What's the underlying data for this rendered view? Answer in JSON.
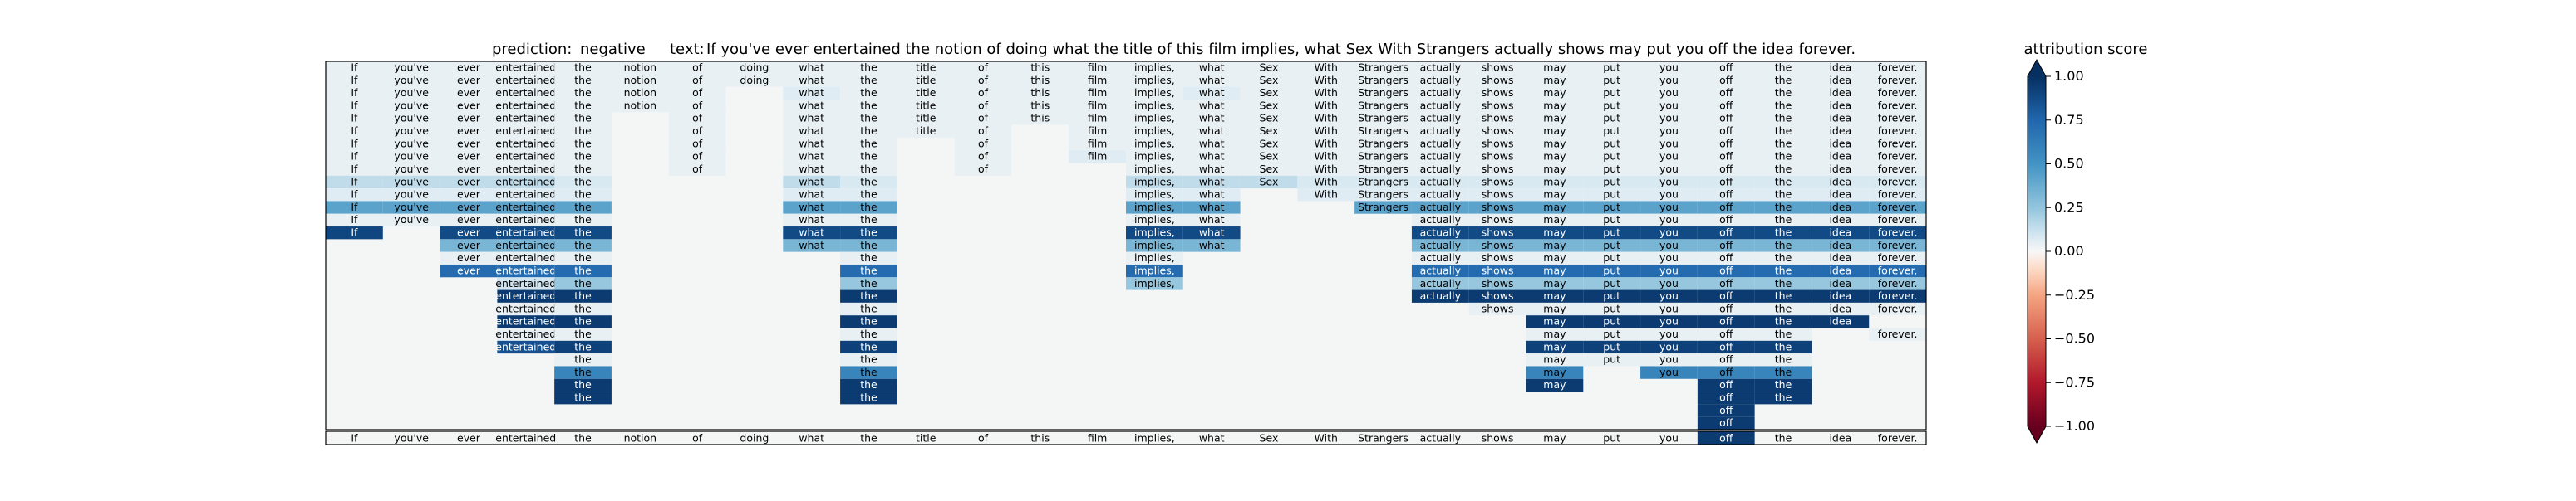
{
  "header": {
    "prediction_label": "prediction:",
    "prediction_value": "negative",
    "text_label": "text:",
    "text_value": "If you've ever entertained the notion of doing what the title of this film implies, what Sex With Strangers actually shows may put you off the idea forever."
  },
  "chart_data": {
    "type": "heatmap",
    "tokens": [
      "If",
      "you've",
      "ever",
      "entertained",
      "the",
      "notion",
      "of",
      "doing",
      "what",
      "the",
      "title",
      "of",
      "this",
      "film",
      "implies,",
      "what",
      "Sex",
      "With",
      "Strangers",
      "actually",
      "shows",
      "may",
      "put",
      "you",
      "off",
      "the",
      "idea",
      "forever."
    ],
    "row_spans": [
      [
        0,
        27
      ],
      [
        0,
        27
      ],
      [
        0,
        27
      ],
      [
        0,
        27
      ],
      [
        0,
        27
      ],
      [
        0,
        27
      ],
      [
        0,
        27
      ],
      [
        0,
        27
      ],
      [
        0,
        27
      ],
      [
        0,
        27
      ],
      [
        0,
        27
      ],
      [
        0,
        27
      ],
      [
        0,
        27
      ],
      [
        0,
        27
      ],
      [
        2,
        27
      ],
      [
        2,
        27
      ],
      [
        2,
        27
      ],
      [
        2,
        27
      ],
      [
        3,
        27
      ],
      [
        3,
        27
      ],
      [
        3,
        26
      ],
      [
        3,
        27
      ],
      [
        3,
        27
      ],
      [
        3,
        27
      ],
      [
        3,
        27
      ],
      [
        3,
        27
      ],
      [
        3,
        27
      ],
      [
        3,
        27
      ],
      [
        3,
        27
      ]
    ],
    "rows": [
      {
        "If": 0.04,
        "you've": 0.04,
        "ever": 0.04,
        "entertained": 0.04,
        "the": 0.04,
        "notion": 0.04,
        "of": 0.04,
        "doing": 0.04,
        "what": 0.04,
        "title": 0.04,
        "this": 0.04,
        "film": 0.04,
        "implies,": 0.04,
        "Sex": 0.04,
        "With": 0.04,
        "Strangers": 0.04,
        "actually": 0.04,
        "shows": 0.04,
        "may": 0.04,
        "put": 0.04,
        "you": 0.04,
        "off": 0.04,
        "idea": 0.04,
        "forever.": 0.04
      },
      {
        "If": 0.04,
        "you've": 0.04,
        "ever": 0.04,
        "entertained": 0.04,
        "the": 0.04,
        "notion": 0.04,
        "of": 0.04,
        "doing": 0.04,
        "what": 0.04,
        "title": 0.04,
        "this": 0.04,
        "film": 0.04,
        "implies,": 0.04,
        "Sex": 0.04,
        "With": 0.04,
        "Strangers": 0.04,
        "actually": 0.04,
        "shows": 0.04,
        "may": 0.04,
        "put": 0.04,
        "you": 0.04,
        "off": 0.04,
        "idea": 0.04,
        "forever.": 0.04
      },
      {
        "If": 0.04,
        "you've": 0.04,
        "ever": 0.04,
        "entertained": 0.04,
        "the": 0.04,
        "notion": 0.04,
        "of": 0.04,
        "what": 0.06,
        "title": 0.04,
        "this": 0.04,
        "film": 0.04,
        "implies,": 0.04,
        "Sex": 0.04,
        "With": 0.04,
        "Strangers": 0.04,
        "actually": 0.04,
        "shows": 0.04,
        "may": 0.04,
        "put": 0.04,
        "you": 0.04,
        "off": 0.04,
        "idea": 0.04,
        "forever.": 0.04
      },
      {
        "If": 0.04,
        "you've": 0.04,
        "ever": 0.04,
        "entertained": 0.04,
        "the": 0.04,
        "notion": 0.04,
        "of": 0.04,
        "what": 0.04,
        "title": 0.04,
        "this": 0.04,
        "film": 0.04,
        "implies,": 0.04,
        "Sex": 0.04,
        "With": 0.04,
        "Strangers": 0.04,
        "actually": 0.04,
        "shows": 0.04,
        "may": 0.04,
        "put": 0.04,
        "you": 0.04,
        "off": 0.04,
        "idea": 0.04,
        "forever.": 0.04
      },
      {
        "If": 0.04,
        "you've": 0.04,
        "ever": 0.04,
        "entertained": 0.04,
        "the": 0.04,
        "of": 0.04,
        "what": 0.04,
        "title": 0.04,
        "this": 0.04,
        "film": 0.04,
        "implies,": 0.04,
        "Sex": 0.04,
        "With": 0.04,
        "Strangers": 0.04,
        "actually": 0.04,
        "shows": 0.04,
        "may": 0.04,
        "put": 0.04,
        "you": 0.04,
        "off": 0.04,
        "idea": 0.04,
        "forever.": 0.04
      },
      {
        "If": 0.04,
        "you've": 0.04,
        "ever": 0.04,
        "entertained": 0.04,
        "the": 0.04,
        "of": 0.04,
        "what": 0.04,
        "title": 0.04,
        "film": 0.04,
        "implies,": 0.04,
        "Sex": 0.04,
        "With": 0.04,
        "Strangers": 0.04,
        "actually": 0.04,
        "shows": 0.04,
        "may": 0.04,
        "put": 0.04,
        "you": 0.04,
        "off": 0.04,
        "idea": 0.04,
        "forever.": 0.04
      },
      {
        "If": 0.04,
        "you've": 0.04,
        "ever": 0.04,
        "entertained": 0.04,
        "the": 0.04,
        "of": 0.04,
        "what": 0.04,
        "film": 0.04,
        "implies,": 0.04,
        "Sex": 0.04,
        "With": 0.04,
        "Strangers": 0.04,
        "actually": 0.04,
        "shows": 0.04,
        "may": 0.04,
        "put": 0.04,
        "you": 0.04,
        "off": 0.04,
        "idea": 0.04,
        "forever.": 0.04
      },
      {
        "If": 0.04,
        "you've": 0.04,
        "ever": 0.04,
        "entertained": 0.04,
        "the": 0.04,
        "of": 0.04,
        "what": 0.04,
        "film": 0.06,
        "implies,": 0.04,
        "Sex": 0.04,
        "With": 0.04,
        "Strangers": 0.04,
        "actually": 0.04,
        "shows": 0.04,
        "may": 0.04,
        "put": 0.04,
        "you": 0.04,
        "off": 0.04,
        "idea": 0.04,
        "forever.": 0.04
      },
      {
        "If": 0.04,
        "you've": 0.04,
        "ever": 0.04,
        "entertained": 0.04,
        "the": 0.04,
        "of": 0.04,
        "what": 0.04,
        "implies,": 0.04,
        "Sex": 0.04,
        "With": 0.04,
        "Strangers": 0.04,
        "actually": 0.04,
        "shows": 0.04,
        "may": 0.04,
        "put": 0.04,
        "you": 0.04,
        "off": 0.04,
        "idea": 0.04,
        "forever.": 0.04
      },
      {
        "If": 0.14,
        "you've": 0.14,
        "ever": 0.14,
        "entertained": 0.14,
        "the": 0.08,
        "what": 0.14,
        "implies,": 0.14,
        "Sex": 0.14,
        "With": 0.08,
        "Strangers": 0.08,
        "actually": 0.08,
        "shows": 0.08,
        "may": 0.08,
        "put": 0.08,
        "you": 0.08,
        "off": 0.08,
        "idea": 0.08,
        "forever.": 0.08
      },
      {
        "If": 0.06,
        "you've": 0.06,
        "ever": 0.06,
        "entertained": 0.06,
        "the": 0.06,
        "what": 0.06,
        "implies,": 0.06,
        "With": 0.06,
        "Strangers": 0.06,
        "actually": 0.06,
        "shows": 0.06,
        "may": 0.06,
        "put": 0.06,
        "you": 0.06,
        "off": 0.06,
        "idea": 0.06,
        "forever.": 0.06
      },
      {
        "If": 0.42,
        "you've": 0.42,
        "ever": 0.42,
        "entertained": 0.42,
        "the": 0.42,
        "what": 0.42,
        "implies,": 0.42,
        "Strangers": 0.42,
        "actually": 0.42,
        "shows": 0.42,
        "may": 0.42,
        "put": 0.42,
        "you": 0.42,
        "off": 0.42,
        "idea": 0.42,
        "forever.": 0.42
      },
      {
        "If": 0.04,
        "you've": 0.04,
        "ever": 0.04,
        "entertained": 0.04,
        "the": 0.04,
        "what": 0.04,
        "implies,": 0.04,
        "actually": 0.04,
        "shows": 0.04,
        "may": 0.04,
        "put": 0.04,
        "you": 0.04,
        "off": 0.04,
        "idea": 0.04,
        "forever.": 0.04
      },
      {
        "If": 0.9,
        "ever": 0.88,
        "entertained": 0.88,
        "the": 0.88,
        "what": 0.88,
        "implies,": 0.88,
        "actually": 0.88,
        "shows": 0.88,
        "may": 0.88,
        "put": 0.88,
        "you": 0.88,
        "off": 0.88,
        "idea": 0.88,
        "forever.": 0.88
      },
      {
        "ever": 0.33,
        "entertained": 0.33,
        "the": 0.33,
        "what": 0.33,
        "implies,": 0.33,
        "actually": 0.33,
        "shows": 0.33,
        "may": 0.33,
        "put": 0.33,
        "you": 0.33,
        "off": 0.33,
        "idea": 0.33,
        "forever.": 0.33
      },
      {
        "ever": 0.04,
        "entertained": 0.04,
        "the": 0.04,
        "implies,": 0.04,
        "actually": 0.04,
        "shows": 0.04,
        "may": 0.04,
        "put": 0.04,
        "you": 0.04,
        "off": 0.04,
        "idea": 0.04,
        "forever.": 0.04
      },
      {
        "ever": 0.72,
        "entertained": 0.72,
        "implies,": 0.72,
        "actually": 0.72,
        "shows": 0.72,
        "may": 0.72,
        "put": 0.72,
        "you": 0.72,
        "off": 0.72,
        "the": 0.72,
        "idea": 0.72,
        "forever.": 0.72
      },
      {
        "entertained": 0.1,
        "implies,": 0.24,
        "actually": 0.24,
        "shows": 0.24,
        "may": 0.24,
        "put": 0.24,
        "you": 0.24,
        "off": 0.24,
        "the": 0.24,
        "idea": 0.24,
        "forever.": 0.24
      },
      {
        "entertained": 0.95,
        "actually": 0.95,
        "shows": 0.95,
        "may": 0.95,
        "put": 0.95,
        "you": 0.95,
        "off": 0.95,
        "the": 0.95,
        "idea": 0.95,
        "forever.": 0.95
      },
      {
        "entertained": 0.04,
        "shows": 0.04,
        "may": 0.04,
        "put": 0.04,
        "you": 0.04,
        "off": 0.04,
        "the": 0.04,
        "idea": 0.04,
        "forever.": 0.04
      },
      {
        "entertained": 0.95,
        "may": 0.95,
        "put": 0.95,
        "you": 0.95,
        "off": 0.95,
        "the": 0.95,
        "idea": 0.95,
        "forever.": 0.95
      },
      {
        "entertained": 0.04,
        "may": 0.04,
        "put": 0.04,
        "you": 0.04,
        "off": 0.04,
        "the": 0.04,
        "forever.": 0.04
      },
      {
        "entertained": 0.85,
        "may": 0.92,
        "put": 0.92,
        "you": 0.92,
        "off": 0.92,
        "the": 0.92
      },
      {
        "may": 0.04,
        "put": 0.04,
        "you": 0.04,
        "off": 0.04,
        "the": 0.04
      },
      {
        "may": 0.58,
        "you": 0.58,
        "off": 0.58,
        "the": 0.58
      },
      {
        "may": 0.95,
        "off": 0.95,
        "the": 0.95
      },
      {
        "off": 0.95,
        "the": 0.95
      },
      {
        "off": 0.95
      },
      {
        "off": 0.95
      }
    ],
    "baseline_row": {
      "off": 0.95
    },
    "colorbar": {
      "label": "attribution score",
      "min": -1.0,
      "max": 1.0,
      "ticks": [
        -1.0,
        -0.75,
        -0.5,
        -0.25,
        0.0,
        0.25,
        0.5,
        0.75,
        1.0
      ],
      "tick_labels": [
        "−1.00",
        "−0.75",
        "−0.50",
        "−0.25",
        "0.00",
        "0.25",
        "0.50",
        "0.75",
        "1.00"
      ],
      "colormap": "RdBu",
      "extend": "both"
    }
  }
}
